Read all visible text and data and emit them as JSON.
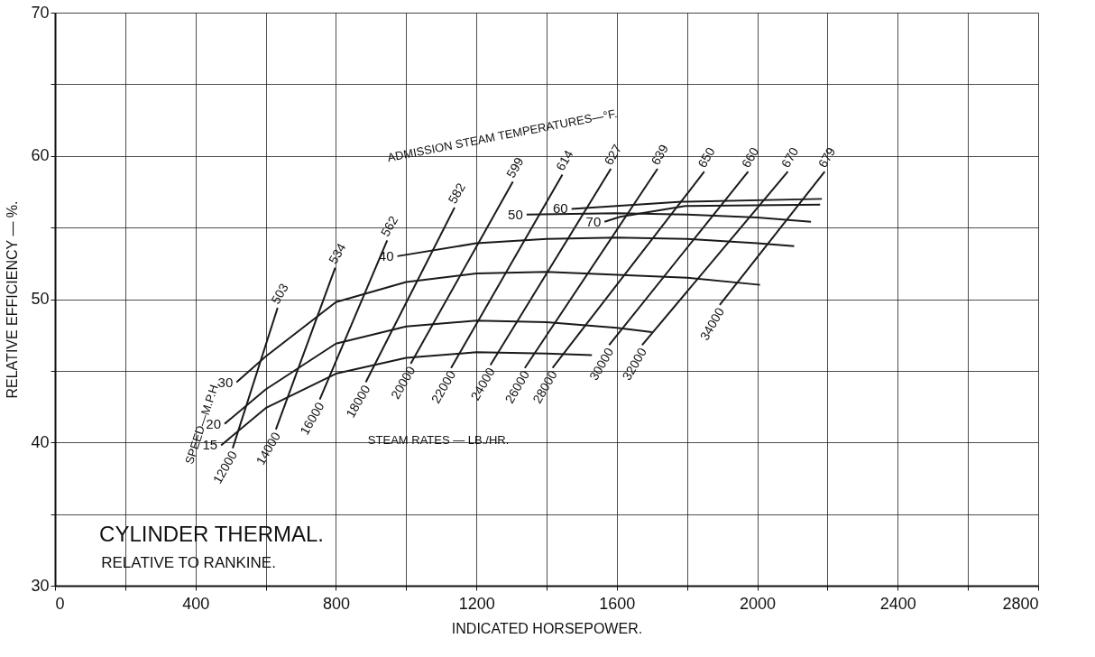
{
  "chart_data": {
    "type": "line",
    "title": "CYLINDER THERMAL.",
    "subtitle": "RELATIVE TO RANKINE.",
    "xlabel": "INDICATED HORSEPOWER.",
    "ylabel": "RELATIVE EFFICIENCY — %.",
    "xlim": [
      0,
      2800
    ],
    "ylim": [
      30,
      70
    ],
    "xticks": [
      0,
      {
        "value": 200,
        "label": null
      },
      400,
      {
        "value": 600,
        "label": null
      },
      800,
      {
        "value": 1000,
        "label": null
      },
      1200,
      {
        "value": 1400,
        "label": null
      },
      1600,
      {
        "value": 1800,
        "label": null
      },
      2000,
      {
        "value": 2200,
        "label": null
      },
      2400,
      {
        "value": 2600,
        "label": null
      },
      2800
    ],
    "yticks": [
      30,
      {
        "value": 35,
        "label": null
      },
      40,
      {
        "value": 45,
        "label": null
      },
      50,
      {
        "value": 55,
        "label": null
      },
      60,
      {
        "value": 65,
        "label": null
      },
      70
    ],
    "grid": true,
    "legend": false,
    "marker": "none",
    "line_style": "solid",
    "series": [
      {
        "name": "15",
        "color": "#1a1a1a",
        "x": [
          473,
          600,
          800,
          1000,
          1200,
          1400,
          1529
        ],
        "values": [
          39.8,
          42.4,
          44.8,
          45.9,
          46.3,
          46.2,
          46.1
        ]
      },
      {
        "name": "20",
        "color": "#1a1a1a",
        "x": [
          483,
          600,
          800,
          1000,
          1200,
          1400,
          1600,
          1700
        ],
        "values": [
          41.3,
          43.7,
          46.9,
          48.1,
          48.5,
          48.4,
          48.0,
          47.7
        ]
      },
      {
        "name": "30",
        "color": "#1a1a1a",
        "x": [
          517,
          600,
          800,
          1000,
          1200,
          1400,
          1600,
          1800,
          2008
        ],
        "values": [
          44.2,
          46.0,
          49.8,
          51.2,
          51.8,
          51.9,
          51.7,
          51.5,
          51.0
        ]
      },
      {
        "name": "40",
        "color": "#1a1a1a",
        "x": [
          975,
          1200,
          1400,
          1600,
          1800,
          2000,
          2105
        ],
        "values": [
          53.0,
          53.9,
          54.2,
          54.3,
          54.2,
          53.9,
          53.7
        ]
      },
      {
        "name": "50",
        "color": "#1a1a1a",
        "x": [
          1343,
          1600,
          1800,
          2000,
          2153
        ],
        "values": [
          55.9,
          56.0,
          55.9,
          55.7,
          55.4
        ]
      },
      {
        "name": "60",
        "color": "#1a1a1a",
        "x": [
          1471,
          1785,
          2184
        ],
        "values": [
          56.3,
          56.8,
          57.0
        ]
      },
      {
        "name": "70",
        "color": "#1a1a1a",
        "x": [
          1565,
          1609,
          1795,
          2179
        ],
        "values": [
          55.4,
          55.75,
          56.5,
          56.6
        ]
      },
      {
        "name": "12000",
        "color": "#1a1a1a",
        "x": [
          506,
          634
        ],
        "values": [
          39.6,
          49.4
        ]
      },
      {
        "name": "14000",
        "color": "#1a1a1a",
        "x": [
          629,
          798
        ],
        "values": [
          40.9,
          52.2
        ]
      },
      {
        "name": "16000",
        "color": "#1a1a1a",
        "x": [
          754,
          946
        ],
        "values": [
          43.0,
          54.1
        ]
      },
      {
        "name": "18000",
        "color": "#1a1a1a",
        "x": [
          885,
          1138
        ],
        "values": [
          44.2,
          56.4
        ]
      },
      {
        "name": "20000",
        "color": "#1a1a1a",
        "x": [
          1013,
          1304
        ],
        "values": [
          45.5,
          58.2
        ]
      },
      {
        "name": "22000",
        "color": "#1a1a1a",
        "x": [
          1128,
          1445
        ],
        "values": [
          45.2,
          58.7
        ]
      },
      {
        "name": "24000",
        "color": "#1a1a1a",
        "x": [
          1240,
          1583
        ],
        "values": [
          45.4,
          59.1
        ]
      },
      {
        "name": "26000",
        "color": "#1a1a1a",
        "x": [
          1338,
          1716
        ],
        "values": [
          45.2,
          59.1
        ]
      },
      {
        "name": "28000",
        "color": "#1a1a1a",
        "x": [
          1417,
          1849
        ],
        "values": [
          45.2,
          58.9
        ]
      },
      {
        "name": "30000",
        "color": "#1a1a1a",
        "x": [
          1578,
          1974
        ],
        "values": [
          46.8,
          58.9
        ]
      },
      {
        "name": "32000",
        "color": "#1a1a1a",
        "x": [
          1672,
          2087
        ],
        "values": [
          46.8,
          58.9
        ]
      },
      {
        "name": "34000",
        "color": "#1a1a1a",
        "x": [
          1893,
          2192
        ],
        "values": [
          49.6,
          58.9
        ]
      }
    ],
    "annotations": [
      "ADMISSION STEAM TEMPERATURES—°F.",
      "SPEED—M.P.H.",
      "STEAM RATES — LB./HR.",
      {
        "text": "503",
        "x": 634,
        "y": 49.4
      },
      {
        "text": "534",
        "x": 798,
        "y": 52.2
      },
      {
        "text": "562",
        "x": 946,
        "y": 54.1
      },
      {
        "text": "582",
        "x": 1138,
        "y": 56.4
      },
      {
        "text": "599",
        "x": 1304,
        "y": 58.2
      },
      {
        "text": "614",
        "x": 1445,
        "y": 58.7
      },
      {
        "text": "627",
        "x": 1583,
        "y": 59.1
      },
      {
        "text": "639",
        "x": 1716,
        "y": 59.1
      },
      {
        "text": "650",
        "x": 1849,
        "y": 58.9
      },
      {
        "text": "660",
        "x": 1974,
        "y": 58.9
      },
      {
        "text": "670",
        "x": 2087,
        "y": 58.9
      },
      {
        "text": "679",
        "x": 2192,
        "y": 58.9
      }
    ]
  }
}
